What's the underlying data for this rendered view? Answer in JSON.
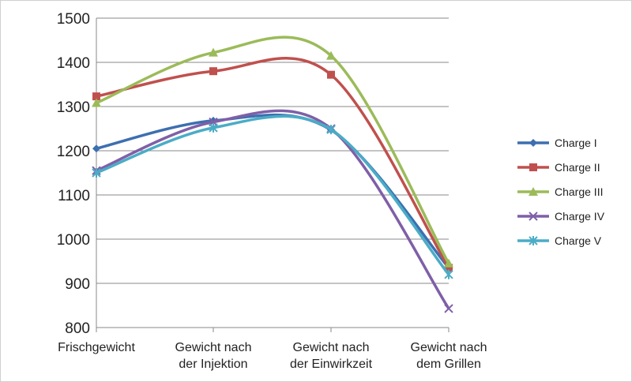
{
  "chart_data": {
    "type": "line",
    "title": "",
    "xlabel": "",
    "ylabel": "",
    "categories": [
      [
        "Frischgewicht"
      ],
      [
        "Gewicht nach",
        "der Injektion"
      ],
      [
        "Gewicht nach",
        "der Einwirkzeit"
      ],
      [
        "Gewicht nach",
        "dem Grillen"
      ]
    ],
    "ylim": [
      800,
      1500
    ],
    "yticks": [
      800,
      900,
      1000,
      1100,
      1200,
      1300,
      1400,
      1500
    ],
    "grid": "horizontal",
    "legend_position": "right",
    "series": [
      {
        "name": "Charge I",
        "values": [
          1205,
          1268,
          1247,
          935
        ],
        "color": "#3d6fb0",
        "marker": "diamond"
      },
      {
        "name": "Charge II",
        "values": [
          1323,
          1380,
          1372,
          935
        ],
        "color": "#c0504d",
        "marker": "square"
      },
      {
        "name": "Charge III",
        "values": [
          1308,
          1422,
          1415,
          945
        ],
        "color": "#9bbb59",
        "marker": "triangle"
      },
      {
        "name": "Charge IV",
        "values": [
          1155,
          1265,
          1250,
          843
        ],
        "color": "#7f5fa8",
        "marker": "x"
      },
      {
        "name": "Charge V",
        "values": [
          1150,
          1252,
          1248,
          920
        ],
        "color": "#4bacc6",
        "marker": "star"
      }
    ]
  }
}
